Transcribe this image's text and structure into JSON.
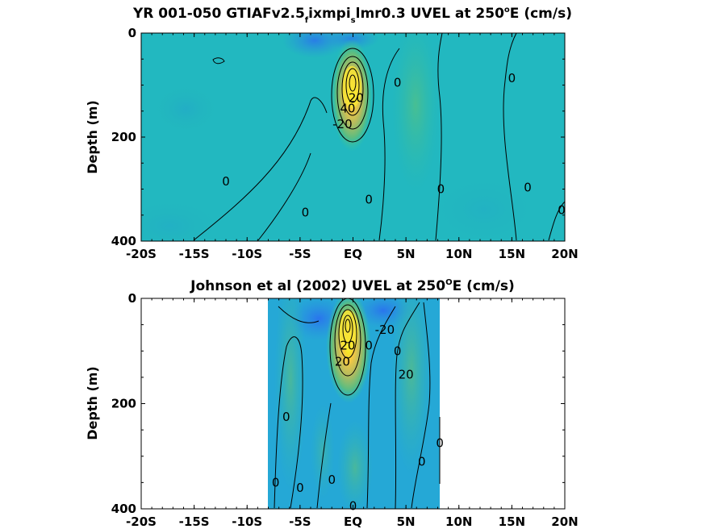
{
  "chart_data": [
    {
      "type": "heatmap",
      "title_parts": [
        "YR 001-050 GTIAFv2.5",
        "f",
        "ixmpi",
        "s",
        "lmr0.3 UVEL at 250",
        "o",
        "E (cm/s)"
      ],
      "ylabel": "Depth (m)",
      "x_ticks": [
        "-20S",
        "-15S",
        "-10S",
        "-5S",
        "EQ",
        "5N",
        "10N",
        "15N",
        "20N"
      ],
      "y_ticks": [
        "0",
        "200",
        "400"
      ],
      "xlim": [
        -20,
        20
      ],
      "ylim": [
        0,
        400
      ],
      "data_extent": [
        -20,
        20
      ],
      "jet": {
        "lat": 0,
        "depth": 105,
        "max": 100
      },
      "contour_labels": [
        {
          "text": "0",
          "lat": 4.2,
          "depth": 95
        },
        {
          "text": "0",
          "lat": 15.0,
          "depth": 87
        },
        {
          "text": "-20",
          "lat": -1.0,
          "depth": 175
        },
        {
          "text": "20",
          "lat": 0.3,
          "depth": 125
        },
        {
          "text": "40",
          "lat": -0.5,
          "depth": 145
        },
        {
          "text": "0",
          "lat": -12.0,
          "depth": 285
        },
        {
          "text": "0",
          "lat": 1.5,
          "depth": 320
        },
        {
          "text": "0",
          "lat": 8.3,
          "depth": 300
        },
        {
          "text": "0",
          "lat": 16.5,
          "depth": 297
        },
        {
          "text": "0",
          "lat": -4.5,
          "depth": 345
        },
        {
          "text": "0",
          "lat": 19.7,
          "depth": 340
        }
      ]
    },
    {
      "type": "heatmap",
      "title_parts": [
        "Johnson et al (2002) UVEL at 250",
        "O",
        "E (cm/s)"
      ],
      "ylabel": "Depth (m)",
      "x_ticks": [
        "-20S",
        "-15S",
        "-10S",
        "-5S",
        "EQ",
        "5N",
        "10N",
        "15N",
        "20N"
      ],
      "y_ticks": [
        "0",
        "200",
        "400"
      ],
      "xlim": [
        -20,
        20
      ],
      "ylim": [
        0,
        400
      ],
      "data_extent": [
        -8,
        8.3
      ],
      "jet": {
        "lat": 0,
        "depth": 70,
        "max": 100
      },
      "contour_labels": [
        {
          "text": "-20",
          "lat": 3.0,
          "depth": 60
        },
        {
          "text": "0",
          "lat": 1.5,
          "depth": 90
        },
        {
          "text": "0",
          "lat": 4.2,
          "depth": 100
        },
        {
          "text": "20",
          "lat": -0.5,
          "depth": 90
        },
        {
          "text": "20",
          "lat": 5.0,
          "depth": 145
        },
        {
          "text": "20",
          "lat": -1.0,
          "depth": 120
        },
        {
          "text": "0",
          "lat": -6.3,
          "depth": 225
        },
        {
          "text": "0",
          "lat": 8.2,
          "depth": 275
        },
        {
          "text": "0",
          "lat": 6.5,
          "depth": 310
        },
        {
          "text": "0",
          "lat": -7.3,
          "depth": 350
        },
        {
          "text": "0",
          "lat": -5.0,
          "depth": 360
        },
        {
          "text": "0",
          "lat": -2.0,
          "depth": 345
        },
        {
          "text": "0",
          "lat": 0.0,
          "depth": 395
        }
      ]
    }
  ]
}
